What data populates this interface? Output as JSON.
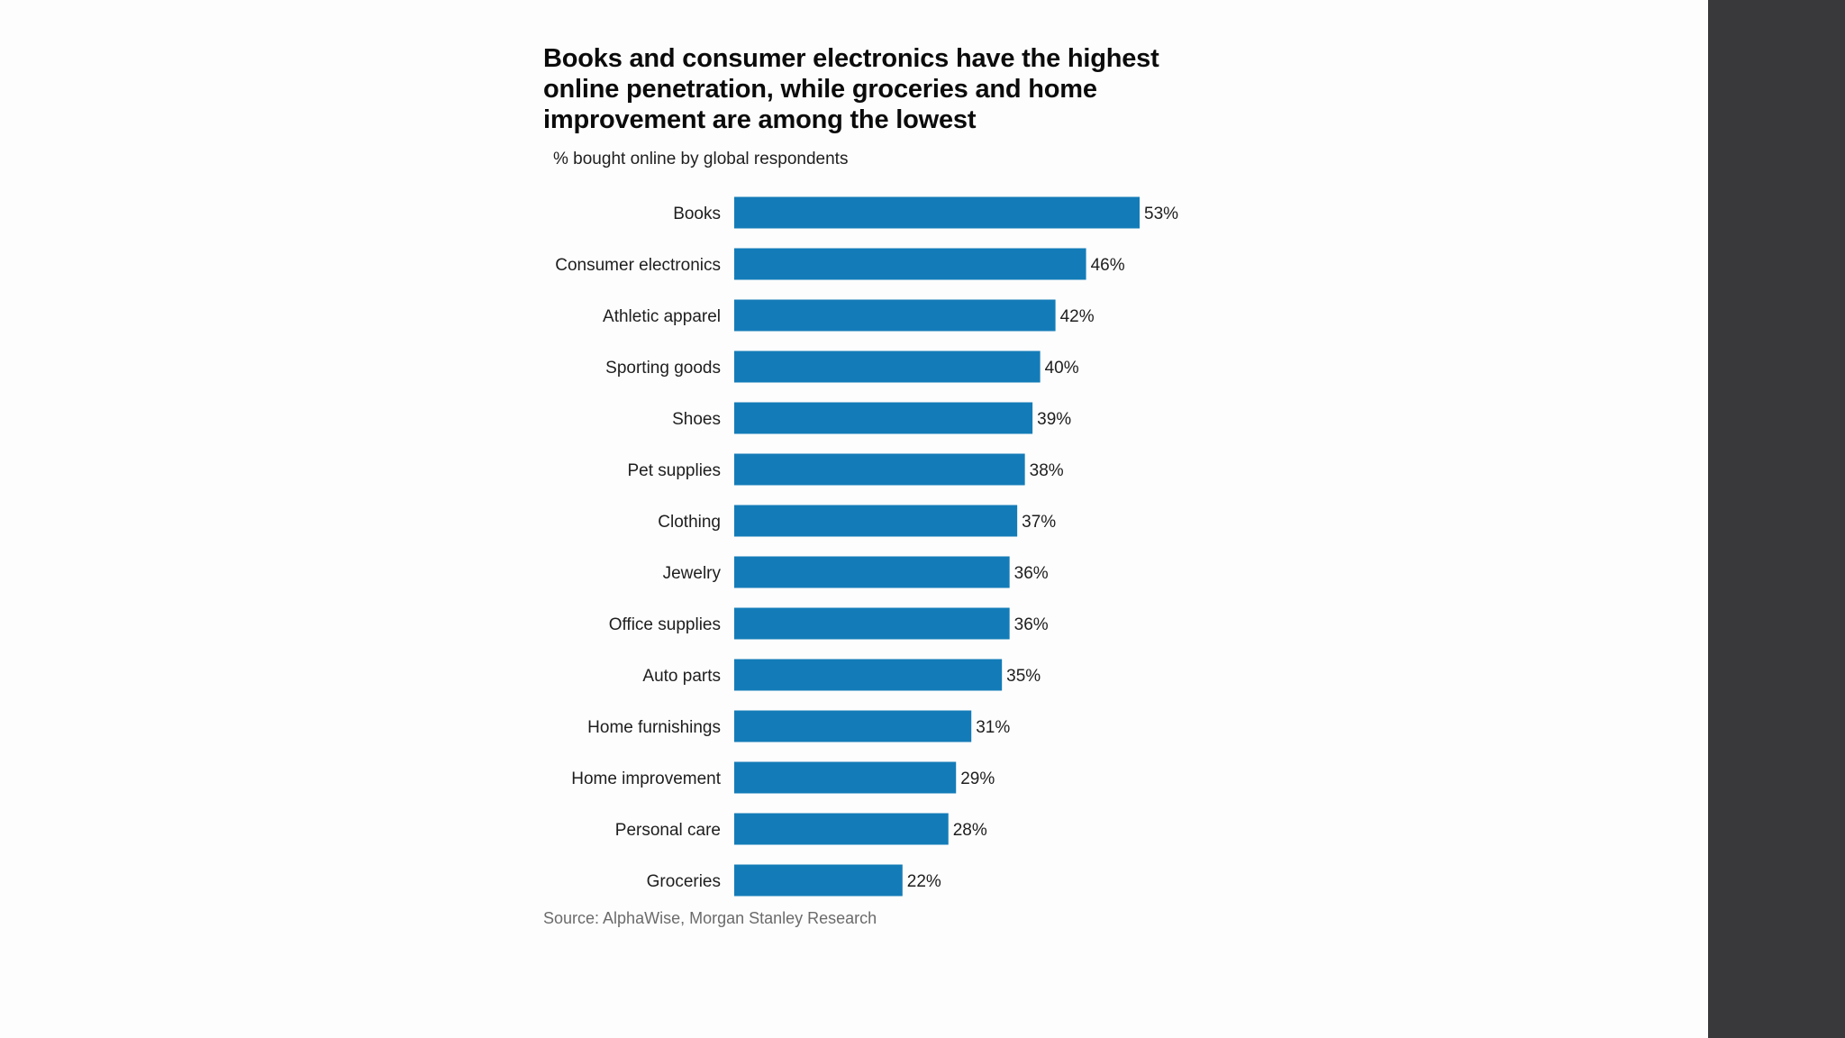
{
  "colors": {
    "bar": "#137cb8",
    "background": "#fdfdfd",
    "right_panel": "#39393b"
  },
  "chart_data": {
    "type": "bar",
    "orientation": "horizontal",
    "title": "Books and consumer electronics have the highest online penetration, while groceries and home improvement are among the lowest",
    "subtitle": "% bought online by global respondents",
    "source": "Source: AlphaWise, Morgan Stanley Research",
    "value_suffix": "%",
    "xlim": [
      0,
      53
    ],
    "categories": [
      "Books",
      "Consumer electronics",
      "Athletic apparel",
      "Sporting goods",
      "Shoes",
      "Pet supplies",
      "Clothing",
      "Jewelry",
      "Office supplies",
      "Auto parts",
      "Home furnishings",
      "Home improvement",
      "Personal care",
      "Groceries"
    ],
    "values": [
      53,
      46,
      42,
      40,
      39,
      38,
      37,
      36,
      36,
      35,
      31,
      29,
      28,
      22
    ]
  }
}
